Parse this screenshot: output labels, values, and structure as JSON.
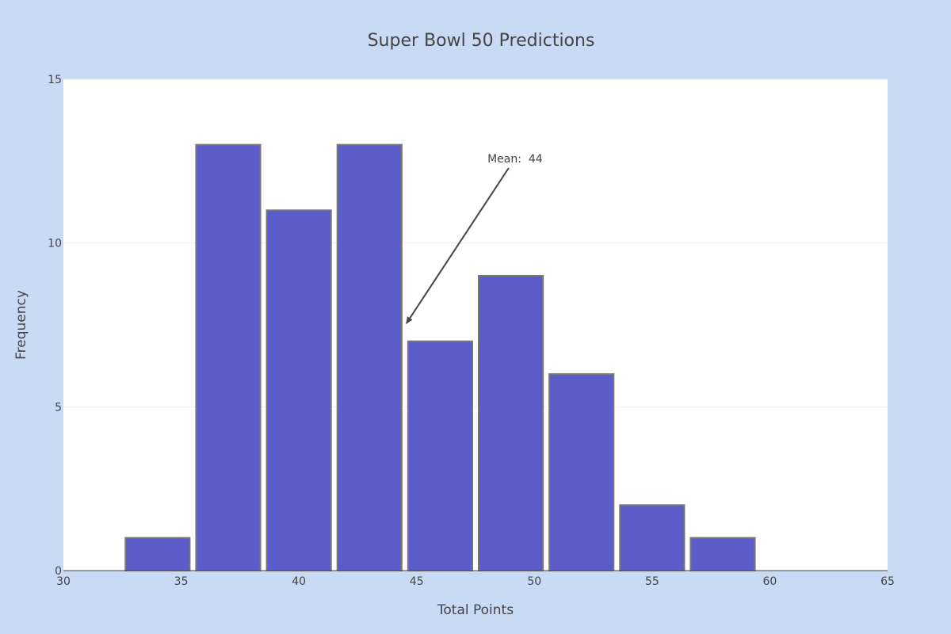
{
  "chart_data": {
    "type": "bar",
    "title": "Super Bowl 50 Predictions",
    "xlabel": "Total Points",
    "ylabel": "Frequency",
    "xlim": [
      30,
      65
    ],
    "ylim": [
      0,
      15
    ],
    "x_ticks": [
      30,
      35,
      40,
      45,
      50,
      55,
      60,
      65
    ],
    "y_ticks": [
      0,
      5,
      10,
      15
    ],
    "grid": true,
    "bins": [
      {
        "start": 32.5,
        "end": 35.5,
        "value": 1
      },
      {
        "start": 35.5,
        "end": 38.5,
        "value": 13
      },
      {
        "start": 38.5,
        "end": 41.5,
        "value": 11
      },
      {
        "start": 41.5,
        "end": 44.5,
        "value": 13
      },
      {
        "start": 44.5,
        "end": 47.5,
        "value": 7
      },
      {
        "start": 47.5,
        "end": 50.5,
        "value": 9
      },
      {
        "start": 50.5,
        "end": 53.5,
        "value": 6
      },
      {
        "start": 53.5,
        "end": 56.5,
        "value": 2
      },
      {
        "start": 56.5,
        "end": 59.5,
        "value": 1
      }
    ],
    "annotation": {
      "text": "Mean:  44",
      "x": 44.5,
      "y": 7.5
    }
  },
  "colors": {
    "background": "#c9daf5",
    "plot_background": "#ffffff",
    "bar_fill": "#4d4dc6",
    "bar_outline": "#777777",
    "text": "#444444",
    "grid": "#eeeeee",
    "axis_line": "#444444"
  }
}
